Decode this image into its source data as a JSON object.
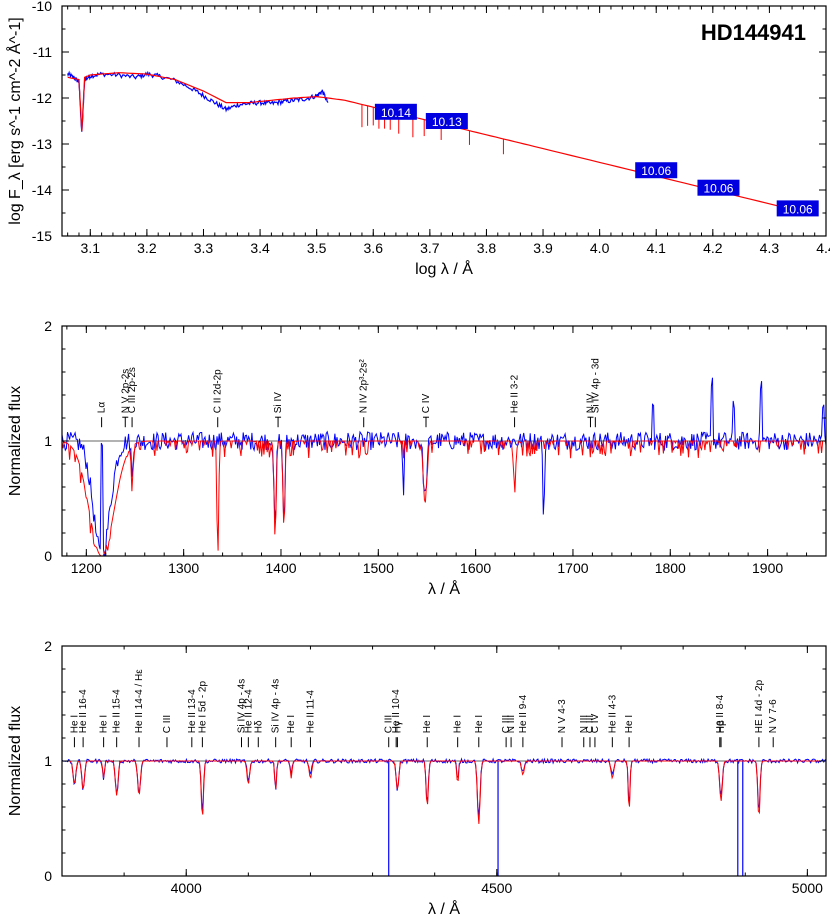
{
  "chart_data": [
    {
      "type": "line",
      "id": "sed",
      "title": "HD144941",
      "xlabel": "log λ / Å",
      "ylabel": "log F_λ [erg s^-1 cm^-2 Å^-1]",
      "xlim": [
        3.05,
        4.4
      ],
      "ylim": [
        -15,
        -10
      ],
      "xticks": [
        3.1,
        3.2,
        3.3,
        3.4,
        3.5,
        3.6,
        3.7,
        3.8,
        3.9,
        4.0,
        4.1,
        4.2,
        4.3,
        4.4
      ],
      "xtick_labels": [
        "3.1",
        "3.2",
        "3.3",
        "3.4",
        "3.5",
        "3.6",
        "3.7",
        "3.8",
        "3.9",
        "4.0",
        "4.1",
        "4.2",
        "4.3",
        "4.4"
      ],
      "yticks": [
        -15,
        -14,
        -13,
        -12,
        -11,
        -10
      ],
      "ytick_labels": [
        "-15",
        "-14",
        "-13",
        "-12",
        "-11",
        "-10"
      ],
      "series": [
        {
          "color": "#0000ff",
          "x": [
            3.06,
            3.07,
            3.08,
            3.085,
            3.09,
            3.1,
            3.12,
            3.15,
            3.18,
            3.2,
            3.22,
            3.25,
            3.28,
            3.3,
            3.32,
            3.34,
            3.36,
            3.38,
            3.4,
            3.42,
            3.44,
            3.46,
            3.48,
            3.5,
            3.51,
            3.52
          ],
          "y": [
            -11.48,
            -11.55,
            -11.65,
            -12.78,
            -11.6,
            -11.52,
            -11.48,
            -11.5,
            -11.55,
            -11.48,
            -11.52,
            -11.62,
            -11.8,
            -11.95,
            -12.1,
            -12.25,
            -12.15,
            -12.12,
            -12.1,
            -12.12,
            -12.08,
            -12.05,
            -12.02,
            -11.95,
            -11.85,
            -12.1
          ]
        },
        {
          "color": "#ff0000",
          "x": [
            3.06,
            3.08,
            3.085,
            3.09,
            3.1,
            3.15,
            3.2,
            3.25,
            3.3,
            3.34,
            3.38,
            3.42,
            3.46,
            3.5,
            3.52,
            3.55,
            3.6,
            3.65,
            3.7,
            3.75,
            3.8,
            3.85,
            3.9,
            4.0,
            4.1,
            4.2,
            4.3,
            4.38
          ],
          "y": [
            -11.55,
            -11.6,
            -12.72,
            -11.55,
            -11.5,
            -11.45,
            -11.48,
            -11.6,
            -11.85,
            -12.1,
            -12.1,
            -12.05,
            -12.0,
            -11.97,
            -12.0,
            -12.05,
            -12.2,
            -12.35,
            -12.5,
            -12.65,
            -12.8,
            -12.95,
            -13.1,
            -13.4,
            -13.7,
            -14.0,
            -14.3,
            -14.55
          ]
        }
      ],
      "photometry": [
        {
          "logl": 3.64,
          "logf": -12.3,
          "label": "10.14"
        },
        {
          "logl": 3.73,
          "logf": -12.5,
          "label": "10.13"
        },
        {
          "logl": 4.1,
          "logf": -13.57,
          "label": "10.06"
        },
        {
          "logl": 4.21,
          "logf": -13.95,
          "label": "10.06"
        },
        {
          "logl": 4.35,
          "logf": -14.4,
          "label": "10.06"
        }
      ]
    },
    {
      "type": "line",
      "id": "uv",
      "xlabel": "λ / Å",
      "ylabel": "Normalized flux",
      "xlim": [
        1175,
        1960
      ],
      "ylim": [
        0,
        2
      ],
      "xticks": [
        1200,
        1300,
        1400,
        1500,
        1600,
        1700,
        1800,
        1900
      ],
      "xtick_labels": [
        "1200",
        "1300",
        "1400",
        "1500",
        "1600",
        "1700",
        "1800",
        "1900"
      ],
      "yticks": [
        0,
        1,
        2
      ],
      "ytick_labels": [
        "0",
        "1",
        "2"
      ],
      "continuum": 1,
      "lines": [
        {
          "x": 1215.7,
          "label": "Lα",
          "plain": true
        },
        {
          "x": 1240,
          "label": "N V 2p-2s",
          "pair": true
        },
        {
          "x": 1247,
          "label": "C III 2p-2s"
        },
        {
          "x": 1335,
          "label": "C II 2d-2p"
        },
        {
          "x": 1397,
          "label": "Si IV",
          "pair": true
        },
        {
          "x": 1485,
          "label": "N IV 2p³-2s²"
        },
        {
          "x": 1549,
          "label": "C IV",
          "pair": true
        },
        {
          "x": 1640,
          "label": "He II 3-2"
        },
        {
          "x": 1718,
          "label": "N IV",
          "pair": true
        },
        {
          "x": 1723,
          "label": "Si IV 4p - 3d"
        }
      ],
      "model_features": [
        {
          "x": 1215.7,
          "depth": 1.0,
          "width": 18
        },
        {
          "x": 1247,
          "depth": 0.4,
          "width": 1.2
        },
        {
          "x": 1335,
          "depth": 0.9,
          "width": 1.2
        },
        {
          "x": 1394,
          "depth": 0.85,
          "width": 1.5
        },
        {
          "x": 1403,
          "depth": 0.75,
          "width": 1.5
        },
        {
          "x": 1548,
          "depth": 0.55,
          "width": 2.5
        },
        {
          "x": 1640,
          "depth": 0.35,
          "width": 2.0
        }
      ],
      "obs_features": [
        {
          "x": 1215.7,
          "depth": 1.0,
          "width": 12
        },
        {
          "x": 1247,
          "depth": 0.35,
          "width": 1.2
        },
        {
          "x": 1394,
          "depth": 0.8,
          "width": 1.5
        },
        {
          "x": 1403,
          "depth": 0.7,
          "width": 1.5
        },
        {
          "x": 1526,
          "depth": 0.5,
          "width": 1.0
        },
        {
          "x": 1548,
          "depth": 0.5,
          "width": 2.5
        },
        {
          "x": 1670,
          "depth": 0.82,
          "width": 1.0
        }
      ],
      "obs_spikes": [
        {
          "x": 1216,
          "height": 1.0
        },
        {
          "x": 1843,
          "height": 0.55
        },
        {
          "x": 1893,
          "height": 0.5
        },
        {
          "x": 1865,
          "height": 0.3
        },
        {
          "x": 1957,
          "height": 0.3
        },
        {
          "x": 1782,
          "height": 0.28
        }
      ]
    },
    {
      "type": "line",
      "id": "optical",
      "xlabel": "λ / Å",
      "ylabel": "Normalized flux",
      "xlim": [
        3800,
        5030
      ],
      "ylim": [
        0,
        2
      ],
      "xticks": [
        4000,
        4500,
        5000
      ],
      "xtick_labels": [
        "4000",
        "4500",
        "5000"
      ],
      "yticks": [
        0,
        1,
        2
      ],
      "ytick_labels": [
        "0",
        "1",
        "2"
      ],
      "continuum": 1,
      "lines": [
        {
          "x": 3820,
          "label": "He I"
        },
        {
          "x": 3834,
          "label": "He II 16-4"
        },
        {
          "x": 3867,
          "label": "He I"
        },
        {
          "x": 3888,
          "label": "He II 15-4"
        },
        {
          "x": 3924,
          "label": "He II 14-4 / Hε"
        },
        {
          "x": 3969,
          "label": "C III"
        },
        {
          "x": 4009,
          "label": "He II 13-4"
        },
        {
          "x": 4026,
          "label": "He I 5d - 2p"
        },
        {
          "x": 4089,
          "label": "Si IV 4p - 4s"
        },
        {
          "x": 4100,
          "label": "He II 12-4"
        },
        {
          "x": 4116,
          "label": "Hδ"
        },
        {
          "x": 4144,
          "label": "Si IV 4p - 4s"
        },
        {
          "x": 4169,
          "label": "He I"
        },
        {
          "x": 4200,
          "label": "He II 11-4"
        },
        {
          "x": 4326,
          "label": "C III"
        },
        {
          "x": 4338,
          "label": "He II 10-4"
        },
        {
          "x": 4340,
          "label": "Hγ"
        },
        {
          "x": 4388,
          "label": "He I"
        },
        {
          "x": 4437,
          "label": "He I"
        },
        {
          "x": 4471,
          "label": "He I"
        },
        {
          "x": 4515,
          "label": "C III"
        },
        {
          "x": 4523,
          "label": "N III"
        },
        {
          "x": 4542,
          "label": "He II 9-4"
        },
        {
          "x": 4605,
          "label": "N V 4-3"
        },
        {
          "x": 4640,
          "label": "N III"
        },
        {
          "x": 4658,
          "label": "C IV"
        },
        {
          "x": 4650,
          "label": "C III"
        },
        {
          "x": 4686,
          "label": "He II 4-3"
        },
        {
          "x": 4713,
          "label": "He I"
        },
        {
          "x": 4859,
          "label": "He II 8-4"
        },
        {
          "x": 4861,
          "label": "Hβ"
        },
        {
          "x": 4922,
          "label": "HE I 4d - 2p"
        },
        {
          "x": 4945,
          "label": "N V 7-6"
        }
      ],
      "model_features": [
        {
          "x": 3820,
          "depth": 0.2,
          "width": 3
        },
        {
          "x": 3834,
          "depth": 0.25,
          "width": 3
        },
        {
          "x": 3867,
          "depth": 0.15,
          "width": 2
        },
        {
          "x": 3888,
          "depth": 0.3,
          "width": 3
        },
        {
          "x": 3924,
          "depth": 0.3,
          "width": 3
        },
        {
          "x": 4026,
          "depth": 0.5,
          "width": 2.5
        },
        {
          "x": 4100,
          "depth": 0.2,
          "width": 3
        },
        {
          "x": 4144,
          "depth": 0.25,
          "width": 2
        },
        {
          "x": 4169,
          "depth": 0.15,
          "width": 2
        },
        {
          "x": 4200,
          "depth": 0.15,
          "width": 3
        },
        {
          "x": 4340,
          "depth": 0.25,
          "width": 3
        },
        {
          "x": 4388,
          "depth": 0.4,
          "width": 2.5
        },
        {
          "x": 4437,
          "depth": 0.2,
          "width": 2
        },
        {
          "x": 4471,
          "depth": 0.55,
          "width": 3
        },
        {
          "x": 4542,
          "depth": 0.12,
          "width": 3
        },
        {
          "x": 4686,
          "depth": 0.15,
          "width": 3
        },
        {
          "x": 4713,
          "depth": 0.45,
          "width": 2
        },
        {
          "x": 4861,
          "depth": 0.35,
          "width": 3
        },
        {
          "x": 4922,
          "depth": 0.5,
          "width": 2.5
        }
      ],
      "obs_features": [
        {
          "x": 3820,
          "depth": 0.2,
          "width": 3
        },
        {
          "x": 3834,
          "depth": 0.25,
          "width": 3
        },
        {
          "x": 3867,
          "depth": 0.15,
          "width": 2
        },
        {
          "x": 3888,
          "depth": 0.3,
          "width": 3
        },
        {
          "x": 3924,
          "depth": 0.3,
          "width": 3
        },
        {
          "x": 4026,
          "depth": 0.45,
          "width": 2.5
        },
        {
          "x": 4100,
          "depth": 0.18,
          "width": 3
        },
        {
          "x": 4144,
          "depth": 0.25,
          "width": 2
        },
        {
          "x": 4169,
          "depth": 0.12,
          "width": 2
        },
        {
          "x": 4200,
          "depth": 0.12,
          "width": 3
        },
        {
          "x": 4340,
          "depth": 0.25,
          "width": 3
        },
        {
          "x": 4388,
          "depth": 0.38,
          "width": 2.5
        },
        {
          "x": 4437,
          "depth": 0.18,
          "width": 2
        },
        {
          "x": 4471,
          "depth": 0.5,
          "width": 3
        },
        {
          "x": 4542,
          "depth": 0.1,
          "width": 3
        },
        {
          "x": 4686,
          "depth": 0.12,
          "width": 3
        },
        {
          "x": 4713,
          "depth": 0.42,
          "width": 2
        },
        {
          "x": 4861,
          "depth": 0.3,
          "width": 3
        },
        {
          "x": 4922,
          "depth": 0.45,
          "width": 2.5
        }
      ],
      "obs_spikes_down": [
        {
          "x": 4326,
          "value": 0.0
        },
        {
          "x": 4502,
          "value": 0.0
        },
        {
          "x": 4888,
          "value": 0.0
        },
        {
          "x": 4896,
          "value": 0.0
        }
      ]
    }
  ]
}
